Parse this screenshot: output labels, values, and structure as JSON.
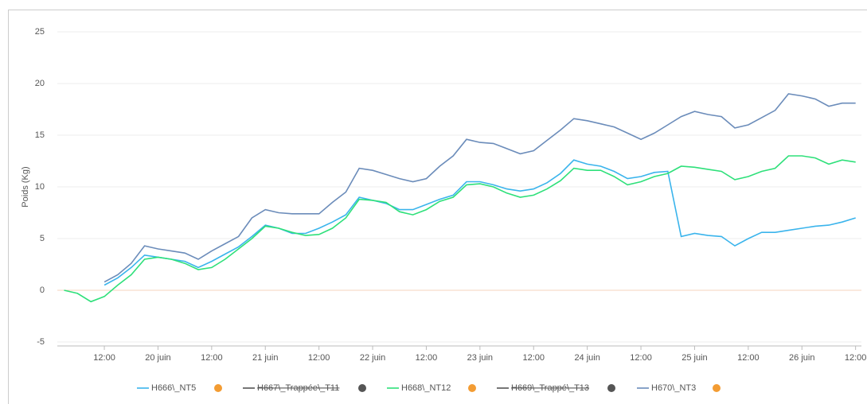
{
  "chart_data": {
    "type": "line",
    "y_label": "Poids (Kg)",
    "categories": [
      null,
      null,
      null,
      "12:00",
      null,
      null,
      null,
      "20 juin",
      null,
      null,
      null,
      "12:00",
      null,
      null,
      null,
      "21 juin",
      null,
      null,
      null,
      "12:00",
      null,
      null,
      null,
      "22 juin",
      null,
      null,
      null,
      "12:00",
      null,
      null,
      null,
      "23 juin",
      null,
      null,
      null,
      "12:00",
      null,
      null,
      null,
      "24 juin",
      null,
      null,
      null,
      "12:00",
      null,
      null,
      null,
      "25 juin",
      null,
      null,
      null,
      "12:00",
      null,
      null,
      null,
      "26 juin",
      null,
      null,
      null,
      "12:00"
    ],
    "ylim": [
      -5,
      25
    ],
    "yticks": [
      -5,
      0,
      5,
      10,
      15,
      20,
      25
    ],
    "grid": true,
    "series": [
      {
        "name": "H666\\_NT5",
        "color": "#3ab4ec",
        "hidden": false,
        "values": [
          null,
          null,
          null,
          0.5,
          1.2,
          2.2,
          3.4,
          3.2,
          3.0,
          2.8,
          2.2,
          2.8,
          3.5,
          4.2,
          5.2,
          6.3,
          6.0,
          5.5,
          5.5,
          6.0,
          6.6,
          7.3,
          9.0,
          8.7,
          8.4,
          7.8,
          7.8,
          8.3,
          8.8,
          9.2,
          10.5,
          10.5,
          10.2,
          9.8,
          9.6,
          9.8,
          10.4,
          11.3,
          12.6,
          12.2,
          12.0,
          11.5,
          10.8,
          11.0,
          11.4,
          11.5,
          5.2,
          5.5,
          5.3,
          5.2,
          4.3,
          5.0,
          5.6,
          5.6,
          5.8,
          6.0,
          6.2,
          6.3,
          6.6,
          7.0
        ]
      },
      {
        "name": "H667\\_Trappée\\_T11",
        "color": "#555555",
        "hidden": true,
        "values": [
          null,
          null,
          null,
          null,
          null,
          null,
          null,
          null,
          null,
          null,
          null,
          null,
          null,
          null,
          null,
          null,
          null,
          null,
          null,
          null,
          null,
          null,
          null,
          null,
          null,
          null,
          null,
          null,
          null,
          null,
          null,
          null,
          null,
          null,
          null,
          null,
          null,
          null,
          null,
          null,
          null,
          null,
          null,
          null,
          null,
          null,
          null,
          null,
          null,
          null,
          null,
          null,
          null,
          null,
          null,
          null,
          null,
          null,
          null,
          null
        ]
      },
      {
        "name": "H668\\_NT12",
        "color": "#2ee07a",
        "hidden": false,
        "values": [
          0,
          -0.3,
          -1.1,
          -0.6,
          0.5,
          1.5,
          3.0,
          3.2,
          3.0,
          2.6,
          2.0,
          2.2,
          3.0,
          4.0,
          5.0,
          6.2,
          6.0,
          5.6,
          5.3,
          5.4,
          6.0,
          7.0,
          8.8,
          8.7,
          8.5,
          7.6,
          7.3,
          7.8,
          8.6,
          9.0,
          10.2,
          10.3,
          10.0,
          9.4,
          9.0,
          9.2,
          9.8,
          10.6,
          11.8,
          11.6,
          11.6,
          11.0,
          10.2,
          10.5,
          11.0,
          11.3,
          12.0,
          11.9,
          11.7,
          11.5,
          10.7,
          11.0,
          11.5,
          11.8,
          13.0,
          13.0,
          12.8,
          12.2,
          12.6,
          12.4
        ]
      },
      {
        "name": "H669\\_Trappé\\_T13",
        "color": "#555555",
        "hidden": true,
        "values": [
          null,
          null,
          null,
          null,
          null,
          null,
          null,
          null,
          null,
          null,
          null,
          null,
          null,
          null,
          null,
          null,
          null,
          null,
          null,
          null,
          null,
          null,
          null,
          null,
          null,
          null,
          null,
          null,
          null,
          null,
          null,
          null,
          null,
          null,
          null,
          null,
          null,
          null,
          null,
          null,
          null,
          null,
          null,
          null,
          null,
          null,
          null,
          null,
          null,
          null,
          null,
          null,
          null,
          null,
          null,
          null,
          null,
          null,
          null,
          null
        ]
      },
      {
        "name": "H670\\_NT3",
        "color": "#6b8cba",
        "hidden": false,
        "values": [
          null,
          null,
          null,
          0.8,
          1.5,
          2.6,
          4.3,
          4.0,
          3.8,
          3.6,
          3.0,
          3.8,
          4.5,
          5.2,
          7.0,
          7.8,
          7.5,
          7.4,
          7.4,
          7.4,
          8.5,
          9.5,
          11.8,
          11.6,
          11.2,
          10.8,
          10.5,
          10.8,
          12.0,
          13.0,
          14.6,
          14.3,
          14.2,
          13.7,
          13.2,
          13.5,
          14.5,
          15.5,
          16.6,
          16.4,
          16.1,
          15.8,
          15.2,
          14.6,
          15.2,
          16.0,
          16.8,
          17.3,
          17.0,
          16.8,
          15.7,
          16.0,
          16.7,
          17.4,
          19.0,
          18.8,
          18.5,
          17.8,
          18.1,
          18.1
        ]
      }
    ]
  }
}
